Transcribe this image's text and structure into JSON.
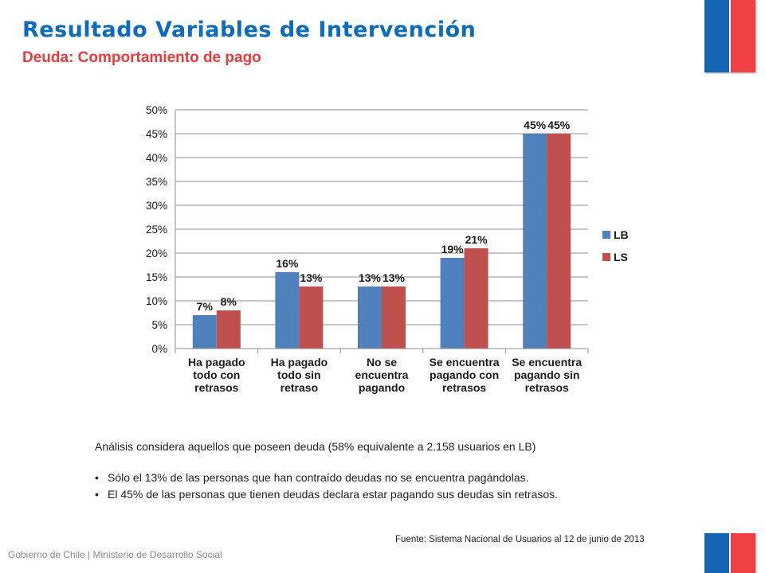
{
  "header": {
    "title": "Resultado Variables de Intervención",
    "subtitle": "Deuda: Comportamiento de pago"
  },
  "chart_data": {
    "type": "bar",
    "categories": [
      [
        "Ha pagado",
        "todo con",
        "retrasos"
      ],
      [
        "Ha pagado",
        "todo sin",
        "retraso"
      ],
      [
        "No se",
        "encuentra",
        "pagando"
      ],
      [
        "Se encuentra",
        "pagando con",
        "retrasos"
      ],
      [
        "Se encuentra",
        "pagando sin",
        "retrasos"
      ]
    ],
    "series": [
      {
        "name": "LB",
        "values": [
          7,
          16,
          13,
          19,
          45
        ],
        "labels": [
          "7%",
          "16%",
          "13%",
          "19%",
          "45%"
        ],
        "color": "#4f81bd"
      },
      {
        "name": "LS",
        "values": [
          8,
          13,
          13,
          21,
          45
        ],
        "labels": [
          "8%",
          "13%",
          "13%",
          "21%",
          "45%"
        ],
        "color": "#c0504d"
      }
    ],
    "ylim": [
      0,
      50
    ],
    "yticks": [
      "0%",
      "5%",
      "10%",
      "15%",
      "20%",
      "25%",
      "30%",
      "35%",
      "40%",
      "45%",
      "50%"
    ],
    "grid": true,
    "legend": "right"
  },
  "analysis": {
    "intro": "Análisis considera aquellos que poseen deuda (58% equivalente a 2.158 usuarios en LB)",
    "bullet_symbol": "•",
    "bullets": [
      "Sólo el 13% de las personas que han contraído deudas no se encuentra pagándolas.",
      "El 45% de las personas que tienen deudas declara estar pagando sus deudas sin retrasos."
    ]
  },
  "source": "Fuente: Sistema Nacional de Usuarios al 12 de junio de 2013",
  "footer": "Gobierno de Chile | Ministerio de Desarrollo Social",
  "colors": {
    "title": "#0b6bbd",
    "subtitle": "#e83b3c",
    "flag_blue": "#1565b6",
    "flag_red": "#ef4046"
  }
}
